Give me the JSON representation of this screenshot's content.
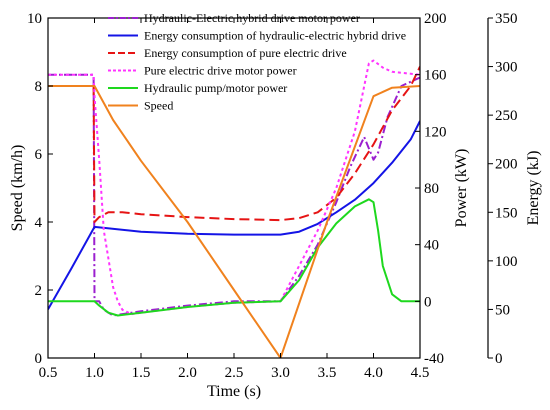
{
  "chart_data": {
    "type": "line",
    "xlabel": "Time (s)",
    "ylabels": {
      "speed": "Speed (km/h)",
      "power": "Power (kW)",
      "energy": "Energy (kJ)"
    },
    "axes": {
      "x": {
        "range": [
          0.5,
          4.5
        ],
        "ticks": [
          0.5,
          1.0,
          1.5,
          2.0,
          2.5,
          3.0,
          3.5,
          4.0,
          4.5
        ],
        "tick_labels": [
          "0.5",
          "1.0",
          "1.5",
          "2.0",
          "2.5",
          "3.0",
          "3.5",
          "4.0",
          "4.5"
        ]
      },
      "speed": {
        "range": [
          0,
          10
        ],
        "ticks": [
          0,
          2,
          4,
          6,
          8,
          10
        ],
        "tick_labels": [
          "0",
          "2",
          "4",
          "6",
          "8",
          "10"
        ]
      },
      "power": {
        "range": [
          -40,
          200
        ],
        "ticks": [
          -40,
          0,
          40,
          80,
          120,
          160,
          200
        ],
        "tick_labels": [
          "-40",
          "0",
          "40",
          "80",
          "120",
          "160",
          "200"
        ]
      },
      "energy": {
        "range": [
          0,
          350
        ],
        "ticks": [
          0,
          50,
          100,
          150,
          200,
          250,
          300,
          350
        ],
        "tick_labels": [
          "0",
          "50",
          "100",
          "150",
          "200",
          "250",
          "300",
          "350"
        ]
      }
    },
    "grid": false,
    "legend_position": "top",
    "series": [
      {
        "name": "Hydraulic-Electric hybrid drive motor power",
        "axis": "power",
        "color": "#9b1fcf",
        "dash": "dashdot",
        "width": 2,
        "points": [
          [
            0.5,
            160
          ],
          [
            0.99,
            160
          ],
          [
            1.0,
            0
          ],
          [
            1.05,
            0
          ],
          [
            1.1,
            -6
          ],
          [
            1.2,
            -10
          ],
          [
            1.3,
            -9
          ],
          [
            1.5,
            -7
          ],
          [
            2.0,
            -3
          ],
          [
            2.5,
            0
          ],
          [
            3.0,
            0
          ],
          [
            3.2,
            18
          ],
          [
            3.4,
            40
          ],
          [
            3.6,
            70
          ],
          [
            3.75,
            95
          ],
          [
            3.9,
            116
          ],
          [
            4.0,
            100
          ],
          [
            4.05,
            105
          ],
          [
            4.15,
            130
          ],
          [
            4.3,
            152
          ],
          [
            4.5,
            158
          ]
        ]
      },
      {
        "name": "Energy consumption of hydraulic-electric hybrid drive",
        "axis": "energy",
        "color": "#1414e6",
        "dash": "solid",
        "width": 2,
        "points": [
          [
            0.5,
            50
          ],
          [
            0.75,
            92
          ],
          [
            1.0,
            135
          ],
          [
            1.5,
            130
          ],
          [
            2.0,
            128
          ],
          [
            2.5,
            127
          ],
          [
            3.0,
            127
          ],
          [
            3.2,
            130
          ],
          [
            3.4,
            138
          ],
          [
            3.6,
            150
          ],
          [
            3.8,
            163
          ],
          [
            4.0,
            180
          ],
          [
            4.2,
            201
          ],
          [
            4.4,
            225
          ],
          [
            4.5,
            244
          ]
        ]
      },
      {
        "name": "Energy consumption of pure electric drive",
        "axis": "energy",
        "color": "#e61414",
        "dash": "dashed",
        "width": 2,
        "points": [
          [
            0.5,
            280
          ],
          [
            0.99,
            280
          ],
          [
            1.0,
            140
          ],
          [
            1.05,
            145
          ],
          [
            1.15,
            150
          ],
          [
            1.3,
            150
          ],
          [
            1.5,
            148
          ],
          [
            2.0,
            145
          ],
          [
            2.5,
            143
          ],
          [
            3.0,
            142
          ],
          [
            3.2,
            144
          ],
          [
            3.4,
            150
          ],
          [
            3.6,
            165
          ],
          [
            3.8,
            190
          ],
          [
            4.0,
            220
          ],
          [
            4.2,
            255
          ],
          [
            4.4,
            280
          ],
          [
            4.5,
            300
          ]
        ]
      },
      {
        "name": "Pure electric drive motor power",
        "axis": "power",
        "color": "#ff33ff",
        "dash": "dotted",
        "width": 2,
        "points": [
          [
            0.5,
            160
          ],
          [
            0.99,
            160
          ],
          [
            1.0,
            145
          ],
          [
            1.05,
            100
          ],
          [
            1.1,
            50
          ],
          [
            1.2,
            10
          ],
          [
            1.25,
            0
          ],
          [
            1.3,
            -6
          ],
          [
            1.4,
            -9
          ],
          [
            1.5,
            -8
          ],
          [
            2.0,
            -4
          ],
          [
            2.5,
            -1
          ],
          [
            3.0,
            0
          ],
          [
            3.2,
            25
          ],
          [
            3.4,
            50
          ],
          [
            3.6,
            80
          ],
          [
            3.8,
            120
          ],
          [
            3.95,
            168
          ],
          [
            4.0,
            170
          ],
          [
            4.1,
            165
          ],
          [
            4.2,
            162
          ],
          [
            4.5,
            160
          ]
        ]
      },
      {
        "name": "Hydraulic pump/motor power",
        "axis": "power",
        "color": "#1ed81e",
        "dash": "solid",
        "width": 2,
        "points": [
          [
            0.5,
            0
          ],
          [
            1.0,
            0
          ],
          [
            1.05,
            -3
          ],
          [
            1.15,
            -8
          ],
          [
            1.25,
            -10
          ],
          [
            1.5,
            -8
          ],
          [
            2.0,
            -4
          ],
          [
            2.5,
            -1
          ],
          [
            3.0,
            0
          ],
          [
            3.2,
            15
          ],
          [
            3.4,
            38
          ],
          [
            3.6,
            55
          ],
          [
            3.8,
            67
          ],
          [
            3.95,
            72
          ],
          [
            4.0,
            70
          ],
          [
            4.05,
            50
          ],
          [
            4.1,
            25
          ],
          [
            4.2,
            5
          ],
          [
            4.3,
            0
          ],
          [
            4.5,
            0
          ]
        ]
      },
      {
        "name": "Speed",
        "axis": "speed",
        "color": "#f0821e",
        "dash": "solid",
        "width": 2,
        "points": [
          [
            0.5,
            8
          ],
          [
            1.0,
            8
          ],
          [
            1.1,
            7.5
          ],
          [
            1.2,
            7.0
          ],
          [
            1.5,
            5.8
          ],
          [
            2.0,
            4.0
          ],
          [
            2.5,
            2.0
          ],
          [
            3.0,
            0
          ],
          [
            3.5,
            4.0
          ],
          [
            4.0,
            7.7
          ],
          [
            4.2,
            7.95
          ],
          [
            4.5,
            8.0
          ]
        ]
      }
    ]
  }
}
